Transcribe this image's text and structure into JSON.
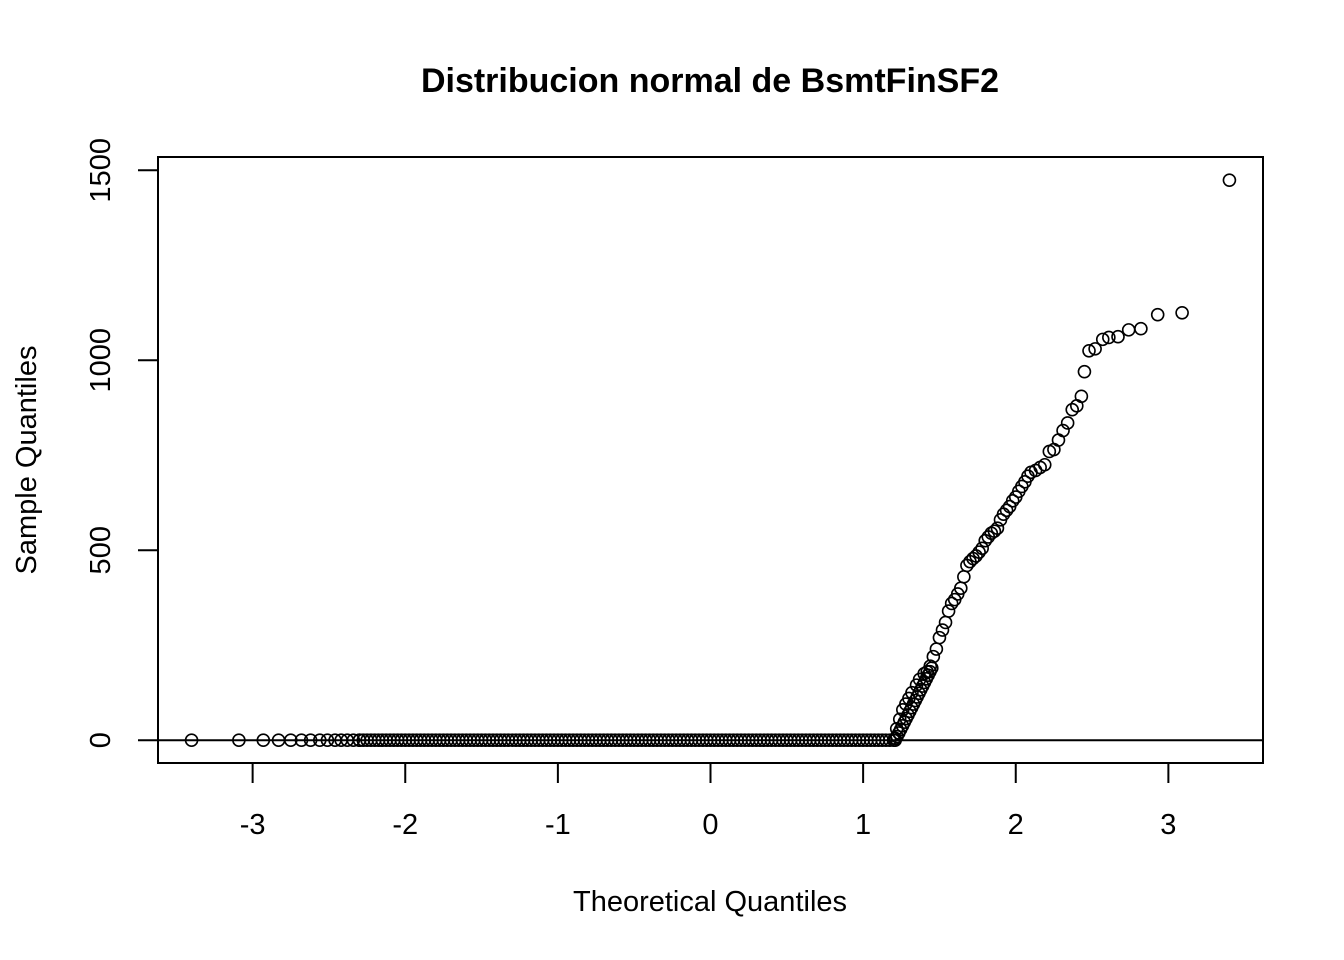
{
  "chart_data": {
    "type": "scatter",
    "title": "Distribucion normal de BsmtFinSF2",
    "xlabel": "Theoretical Quantiles",
    "ylabel": "Sample Quantiles",
    "xlim": [
      -3.62,
      3.62
    ],
    "ylim": [
      -60,
      1535
    ],
    "xticks": [
      "-3",
      "-2",
      "-1",
      "0",
      "1",
      "2",
      "3"
    ],
    "yticks": [
      "0",
      "500",
      "1000",
      "1500"
    ],
    "grid": false,
    "legend": "none",
    "reference_line": {
      "type": "horizontal",
      "y": 0
    },
    "series": [
      {
        "marker": "open-circle",
        "points": [
          [
            -3.4,
            0
          ],
          [
            -3.09,
            0
          ],
          [
            -2.93,
            0
          ],
          [
            -2.83,
            0
          ],
          [
            -2.75,
            0
          ],
          [
            -2.68,
            0
          ],
          [
            -2.62,
            0
          ],
          [
            -2.56,
            0
          ],
          [
            -2.51,
            0
          ],
          [
            -2.46,
            0
          ],
          [
            -2.42,
            0
          ],
          [
            -2.38,
            0
          ],
          [
            -2.34,
            0
          ],
          [
            -2.3,
            0
          ],
          [
            1.21,
            5
          ],
          [
            1.22,
            30
          ],
          [
            1.24,
            55
          ],
          [
            1.26,
            80
          ],
          [
            1.28,
            95
          ],
          [
            1.3,
            110
          ],
          [
            1.32,
            125
          ],
          [
            1.35,
            145
          ],
          [
            1.37,
            160
          ],
          [
            1.4,
            175
          ],
          [
            1.42,
            180
          ],
          [
            1.44,
            195
          ],
          [
            1.46,
            220
          ],
          [
            1.48,
            240
          ],
          [
            1.5,
            270
          ],
          [
            1.52,
            290
          ],
          [
            1.54,
            310
          ],
          [
            1.56,
            340
          ],
          [
            1.58,
            360
          ],
          [
            1.6,
            370
          ],
          [
            1.62,
            385
          ],
          [
            1.64,
            400
          ],
          [
            1.66,
            430
          ],
          [
            1.68,
            460
          ],
          [
            1.7,
            470
          ],
          [
            1.72,
            478
          ],
          [
            1.74,
            485
          ],
          [
            1.76,
            495
          ],
          [
            1.78,
            505
          ],
          [
            1.8,
            525
          ],
          [
            1.82,
            535
          ],
          [
            1.84,
            545
          ],
          [
            1.86,
            550
          ],
          [
            1.88,
            558
          ],
          [
            1.9,
            580
          ],
          [
            1.92,
            595
          ],
          [
            1.94,
            605
          ],
          [
            1.96,
            615
          ],
          [
            1.98,
            630
          ],
          [
            2.0,
            640
          ],
          [
            2.02,
            655
          ],
          [
            2.04,
            668
          ],
          [
            2.06,
            680
          ],
          [
            2.08,
            695
          ],
          [
            2.1,
            705
          ],
          [
            2.13,
            710
          ],
          [
            2.16,
            718
          ],
          [
            2.19,
            725
          ],
          [
            2.22,
            760
          ],
          [
            2.25,
            765
          ],
          [
            2.28,
            790
          ],
          [
            2.31,
            815
          ],
          [
            2.34,
            835
          ],
          [
            2.37,
            870
          ],
          [
            2.4,
            880
          ],
          [
            2.43,
            905
          ],
          [
            2.45,
            970
          ],
          [
            2.48,
            1025
          ],
          [
            2.52,
            1030
          ],
          [
            2.57,
            1055
          ],
          [
            2.61,
            1060
          ],
          [
            2.67,
            1062
          ],
          [
            2.74,
            1080
          ],
          [
            2.82,
            1083
          ],
          [
            2.93,
            1120
          ],
          [
            3.09,
            1125
          ],
          [
            3.4,
            1474
          ]
        ],
        "dense_band": {
          "x_from": -2.3,
          "x_to": 1.21,
          "y": 0
        },
        "dense_rise": {
          "x_from": 1.21,
          "x_to": 1.45,
          "y_from": 0,
          "y_to": 190
        }
      }
    ]
  }
}
